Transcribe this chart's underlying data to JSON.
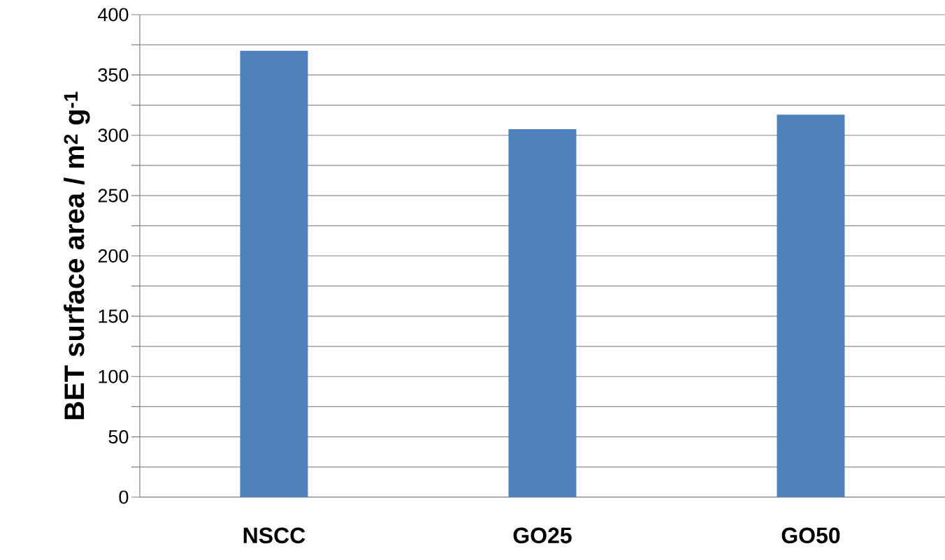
{
  "chart_data": {
    "type": "bar",
    "ylabel": "BET surface area / m$^{2}$ g$^{-1}$",
    "categories": [
      "NSCC",
      "GO25",
      "GO50"
    ],
    "values": [
      370,
      305,
      317
    ],
    "color": "#4f81bd",
    "ylim": [
      0,
      400
    ],
    "yticks": [
      0,
      {
        "value": 25,
        "label": null
      },
      50,
      {
        "value": 75,
        "label": null
      },
      100,
      {
        "value": 125,
        "label": null
      },
      150,
      {
        "value": 175,
        "label": null
      },
      200,
      {
        "value": 225,
        "label": null
      },
      250,
      {
        "value": 275,
        "label": null
      },
      300,
      {
        "value": 325,
        "label": null
      },
      350,
      {
        "value": 375,
        "label": null
      },
      400
    ],
    "grid": "y"
  }
}
